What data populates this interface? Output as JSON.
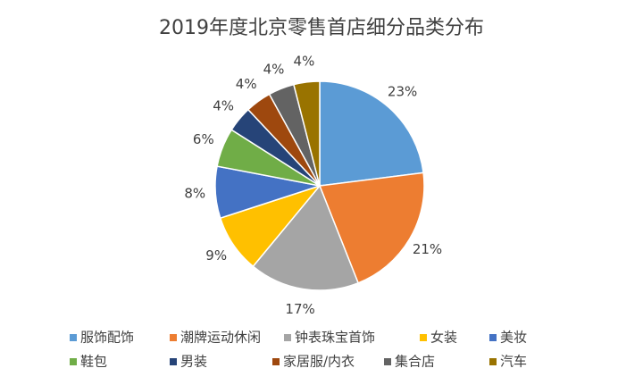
{
  "chart_data": {
    "type": "pie",
    "title": "2019年度北京零售首店细分品类分布",
    "categories": [
      "服饰配饰",
      "潮牌运动休闲",
      "钟表珠宝首饰",
      "女装",
      "美妆",
      "鞋包",
      "男装",
      "家居服/内衣",
      "集合店",
      "汽车"
    ],
    "values": [
      23,
      21,
      17,
      9,
      8,
      6,
      4,
      4,
      4,
      4
    ],
    "value_labels": [
      "23%",
      "21%",
      "17%",
      "9%",
      "8%",
      "6%",
      "4%",
      "4%",
      "4%",
      "4%"
    ],
    "colors": [
      "#5b9bd5",
      "#ed7d31",
      "#a5a5a5",
      "#ffc000",
      "#4472c4",
      "#70ad47",
      "#264478",
      "#9e480e",
      "#636363",
      "#997300"
    ],
    "legend": "bottom"
  }
}
